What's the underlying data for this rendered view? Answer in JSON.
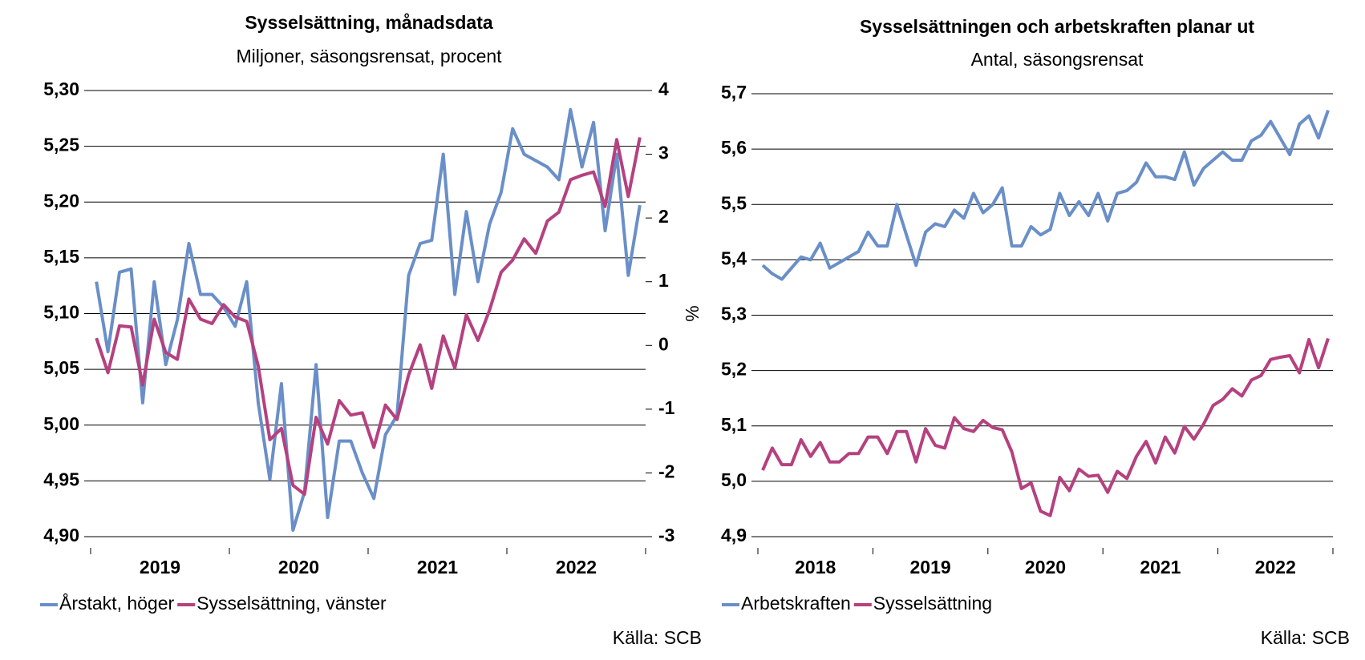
{
  "chart_data": [
    {
      "type": "line",
      "title": "Sysselsättning, månadsdata",
      "subtitle": "Miljoner, säsongsrensat, procent",
      "categories": [
        null,
        null,
        null,
        null,
        null,
        null,
        "2019",
        null,
        null,
        null,
        null,
        null,
        null,
        null,
        null,
        null,
        null,
        null,
        "2020",
        null,
        null,
        null,
        null,
        null,
        null,
        null,
        null,
        null,
        null,
        null,
        "2021",
        null,
        null,
        null,
        null,
        null,
        null,
        null,
        null,
        null,
        null,
        null,
        "2022",
        null,
        null,
        null,
        null,
        null
      ],
      "series": [
        {
          "name": "Årstakt, höger",
          "color": "#6a8fc8",
          "axis": "y2",
          "values": [
            1.0,
            -0.1,
            1.15,
            1.2,
            -0.9,
            1.0,
            -0.3,
            0.4,
            1.6,
            0.8,
            0.8,
            0.6,
            0.3,
            1.0,
            -0.9,
            -2.1,
            -0.6,
            -2.9,
            -2.3,
            -0.3,
            -2.7,
            -1.5,
            -1.5,
            -2.0,
            -2.4,
            -1.4,
            -1.1,
            1.1,
            1.6,
            1.65,
            3.0,
            0.8,
            2.1,
            1.0,
            1.9,
            2.4,
            3.4,
            3.0,
            2.9,
            2.8,
            2.6,
            3.7,
            2.8,
            3.5,
            1.8,
            3.0,
            1.1,
            2.2
          ]
        },
        {
          "name": "Sysselsättning, vänster",
          "color": "#b5417f",
          "values": [
            5.078,
            5.047,
            5.089,
            5.088,
            5.036,
            5.095,
            5.065,
            5.059,
            5.113,
            5.095,
            5.091,
            5.108,
            5.097,
            5.093,
            5.053,
            4.987,
            4.997,
            4.946,
            4.938,
            5.007,
            4.983,
            5.022,
            5.009,
            5.011,
            4.98,
            5.018,
            5.005,
            5.045,
            5.072,
            5.033,
            5.08,
            5.051,
            5.099,
            5.076,
            5.103,
            5.137,
            5.148,
            5.167,
            5.154,
            5.183,
            5.191,
            5.22,
            5.224,
            5.227,
            5.196,
            5.256,
            5.205,
            5.258
          ]
        }
      ],
      "ylim": [
        4.9,
        5.3
      ],
      "yticks": [
        {
          "value": 4.9,
          "label": "4,90"
        },
        {
          "value": 4.95,
          "label": "4,95"
        },
        {
          "value": 5.0,
          "label": "5,00"
        },
        {
          "value": 5.05,
          "label": "5,05"
        },
        {
          "value": 5.1,
          "label": "5,10"
        },
        {
          "value": 5.15,
          "label": "5,15"
        },
        {
          "value": 5.2,
          "label": "5,20"
        },
        {
          "value": 5.25,
          "label": "5,25"
        },
        {
          "value": 5.3,
          "label": "5,30"
        }
      ],
      "y2lim": [
        -3,
        4
      ],
      "y2ticks": [
        -3,
        -2,
        -1,
        0,
        1,
        2,
        3,
        4
      ],
      "y2label": "%",
      "grid": true,
      "legend": "bottom",
      "source": "Källa: SCB"
    },
    {
      "type": "line",
      "title": "Sysselsättningen och arbetskraften planar ut",
      "subtitle": "Antal, säsongsrensat",
      "categories": [
        null,
        null,
        null,
        null,
        null,
        null,
        "2018",
        null,
        null,
        null,
        null,
        null,
        null,
        null,
        null,
        null,
        null,
        null,
        "2019",
        null,
        null,
        null,
        null,
        null,
        null,
        null,
        null,
        null,
        null,
        null,
        "2020",
        null,
        null,
        null,
        null,
        null,
        null,
        null,
        null,
        null,
        null,
        null,
        "2021",
        null,
        null,
        null,
        null,
        null,
        null,
        null,
        null,
        null,
        null,
        null,
        "2022",
        null,
        null,
        null,
        null,
        null
      ],
      "series": [
        {
          "name": "Arbetskraften",
          "color": "#6a8fc8",
          "values": [
            5.39,
            5.375,
            5.365,
            5.385,
            5.405,
            5.4,
            5.43,
            5.385,
            5.395,
            5.405,
            5.415,
            5.45,
            5.425,
            5.425,
            5.5,
            5.445,
            5.39,
            5.45,
            5.465,
            5.46,
            5.49,
            5.475,
            5.52,
            5.485,
            5.5,
            5.53,
            5.425,
            5.425,
            5.46,
            5.445,
            5.455,
            5.52,
            5.48,
            5.505,
            5.48,
            5.52,
            5.47,
            5.52,
            5.525,
            5.54,
            5.575,
            5.55,
            5.55,
            5.545,
            5.595,
            5.535,
            5.565,
            5.58,
            5.595,
            5.58,
            5.58,
            5.615,
            5.625,
            5.65,
            5.62,
            5.59,
            5.645,
            5.66,
            5.62,
            5.67
          ]
        },
        {
          "name": "Sysselsättning",
          "color": "#b5417f",
          "values": [
            5.02,
            5.06,
            5.03,
            5.03,
            5.075,
            5.045,
            5.07,
            5.035,
            5.035,
            5.05,
            5.05,
            5.08,
            5.08,
            5.05,
            5.09,
            5.09,
            5.035,
            5.095,
            5.065,
            5.06,
            5.115,
            5.095,
            5.09,
            5.11,
            5.097,
            5.093,
            5.053,
            4.987,
            4.997,
            4.946,
            4.938,
            5.007,
            4.983,
            5.022,
            5.009,
            5.011,
            4.98,
            5.018,
            5.005,
            5.045,
            5.072,
            5.033,
            5.08,
            5.051,
            5.099,
            5.076,
            5.103,
            5.137,
            5.148,
            5.167,
            5.154,
            5.183,
            5.191,
            5.22,
            5.224,
            5.227,
            5.196,
            5.256,
            5.205,
            5.258
          ]
        }
      ],
      "ylim": [
        4.9,
        5.7
      ],
      "yticks": [
        {
          "value": 4.9,
          "label": "4,9"
        },
        {
          "value": 5.0,
          "label": "5,0"
        },
        {
          "value": 5.1,
          "label": "5,1"
        },
        {
          "value": 5.2,
          "label": "5,2"
        },
        {
          "value": 5.3,
          "label": "5,3"
        },
        {
          "value": 5.4,
          "label": "5,4"
        },
        {
          "value": 5.5,
          "label": "5,5"
        },
        {
          "value": 5.6,
          "label": "5,6"
        },
        {
          "value": 5.7,
          "label": "5,7"
        }
      ],
      "grid": true,
      "legend": "bottom",
      "source": "Källa: SCB"
    }
  ]
}
